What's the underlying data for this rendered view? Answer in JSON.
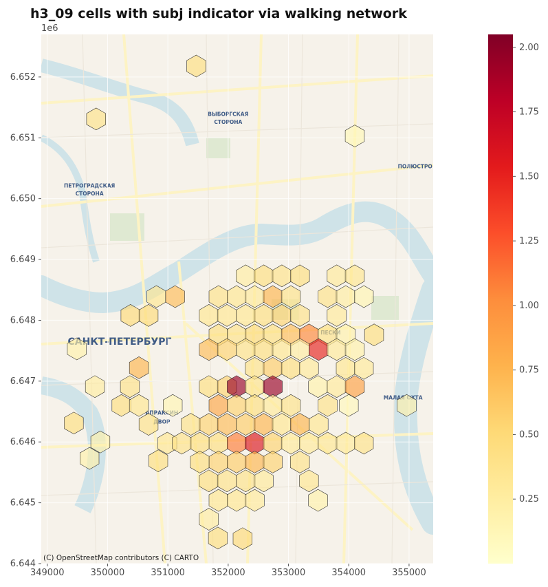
{
  "chart_data": {
    "type": "map",
    "title": "h3_09 cells with subj indicator via walking network",
    "xlim": [
      348900,
      355400
    ],
    "ylim": [
      6644000,
      6652700
    ],
    "y_offset_label": "1e6",
    "x_ticks": [
      349000,
      350000,
      351000,
      352000,
      353000,
      354000,
      355000
    ],
    "x_tick_labels": [
      "349000",
      "350000",
      "351000",
      "352000",
      "353000",
      "354000",
      "355000"
    ],
    "y_ticks": [
      6644000,
      6645000,
      6646000,
      6647000,
      6648000,
      6649000,
      6650000,
      6651000,
      6652000
    ],
    "y_tick_labels": [
      "6.644",
      "6.645",
      "6.646",
      "6.647",
      "6.648",
      "6.649",
      "6.650",
      "6.651",
      "6.652"
    ],
    "colorbar": {
      "colormap": "YlOrRd",
      "min": 0.0,
      "max": 2.05,
      "ticks": [
        0.25,
        0.5,
        0.75,
        1.0,
        1.25,
        1.5,
        1.75,
        2.0
      ],
      "tick_labels": [
        "0.25",
        "0.50",
        "0.75",
        "1.00",
        "1.25",
        "1.50",
        "1.75",
        "2.00"
      ]
    },
    "attribution": "(C) OpenStreetMap contributors (C) CARTO",
    "map_labels": [
      {
        "text": "ВЫБОРГСКАЯ",
        "x": 352000,
        "y": 6651360
      },
      {
        "text": "СТОРОНА",
        "x": 352000,
        "y": 6651230
      },
      {
        "text": "ПЕТРОГРАДСКАЯ",
        "x": 349700,
        "y": 6650180
      },
      {
        "text": "СТОРОНА",
        "x": 349700,
        "y": 6650050
      },
      {
        "text": "САНКТ-ПЕТЕРБУРГ",
        "x": 350200,
        "y": 6647600
      },
      {
        "text": "ПЕСКИ",
        "x": 353700,
        "y": 6647770
      },
      {
        "text": "ПОЛЮСТРО",
        "x": 355100,
        "y": 6650500
      },
      {
        "text": "МАЛАЯ ОХТА",
        "x": 354900,
        "y": 6646700
      },
      {
        "text": "АПРАКСИН",
        "x": 350900,
        "y": 6646450
      },
      {
        "text": "ДВОР",
        "x": 350900,
        "y": 6646300
      }
    ],
    "cells": [
      {
        "x": 351470,
        "y": 6652180,
        "v": 0.45
      },
      {
        "x": 349810,
        "y": 6651310,
        "v": 0.4
      },
      {
        "x": 354100,
        "y": 6651030,
        "v": 0.12
      },
      {
        "x": 352290,
        "y": 6648730,
        "v": 0.25
      },
      {
        "x": 352590,
        "y": 6648730,
        "v": 0.45
      },
      {
        "x": 352890,
        "y": 6648730,
        "v": 0.4
      },
      {
        "x": 353190,
        "y": 6648730,
        "v": 0.45
      },
      {
        "x": 353800,
        "y": 6648730,
        "v": 0.3
      },
      {
        "x": 354100,
        "y": 6648730,
        "v": 0.35
      },
      {
        "x": 350810,
        "y": 6648390,
        "v": 0.35
      },
      {
        "x": 351120,
        "y": 6648390,
        "v": 0.7
      },
      {
        "x": 351840,
        "y": 6648390,
        "v": 0.4
      },
      {
        "x": 352140,
        "y": 6648390,
        "v": 0.35
      },
      {
        "x": 352440,
        "y": 6648390,
        "v": 0.3
      },
      {
        "x": 352740,
        "y": 6648390,
        "v": 0.75
      },
      {
        "x": 353040,
        "y": 6648390,
        "v": 0.4
      },
      {
        "x": 353650,
        "y": 6648390,
        "v": 0.4
      },
      {
        "x": 353950,
        "y": 6648390,
        "v": 0.25
      },
      {
        "x": 354250,
        "y": 6648390,
        "v": 0.15
      },
      {
        "x": 350380,
        "y": 6648080,
        "v": 0.5
      },
      {
        "x": 350680,
        "y": 6648080,
        "v": 0.5
      },
      {
        "x": 351680,
        "y": 6648080,
        "v": 0.35
      },
      {
        "x": 351980,
        "y": 6648080,
        "v": 0.35
      },
      {
        "x": 352290,
        "y": 6648080,
        "v": 0.35
      },
      {
        "x": 352590,
        "y": 6648080,
        "v": 0.45
      },
      {
        "x": 352890,
        "y": 6648080,
        "v": 0.55
      },
      {
        "x": 353190,
        "y": 6648080,
        "v": 0.4
      },
      {
        "x": 353800,
        "y": 6648080,
        "v": 0.3
      },
      {
        "x": 351840,
        "y": 6647760,
        "v": 0.45
      },
      {
        "x": 352140,
        "y": 6647760,
        "v": 0.4
      },
      {
        "x": 352440,
        "y": 6647760,
        "v": 0.5
      },
      {
        "x": 352740,
        "y": 6647760,
        "v": 0.45
      },
      {
        "x": 353040,
        "y": 6647760,
        "v": 0.7
      },
      {
        "x": 353340,
        "y": 6647760,
        "v": 1.05
      },
      {
        "x": 353650,
        "y": 6647760,
        "v": 0.4
      },
      {
        "x": 353950,
        "y": 6647760,
        "v": 0.2
      },
      {
        "x": 354420,
        "y": 6647760,
        "v": 0.45
      },
      {
        "x": 349490,
        "y": 6647530,
        "v": 0.2
      },
      {
        "x": 351680,
        "y": 6647520,
        "v": 0.7
      },
      {
        "x": 351980,
        "y": 6647520,
        "v": 0.55
      },
      {
        "x": 352290,
        "y": 6647520,
        "v": 0.4
      },
      {
        "x": 352590,
        "y": 6647520,
        "v": 0.45
      },
      {
        "x": 352890,
        "y": 6647520,
        "v": 0.35
      },
      {
        "x": 353190,
        "y": 6647520,
        "v": 0.25
      },
      {
        "x": 353500,
        "y": 6647520,
        "v": 1.5
      },
      {
        "x": 353800,
        "y": 6647520,
        "v": 0.3
      },
      {
        "x": 354100,
        "y": 6647520,
        "v": 0.2
      },
      {
        "x": 350520,
        "y": 6647220,
        "v": 0.75
      },
      {
        "x": 352440,
        "y": 6647210,
        "v": 0.4
      },
      {
        "x": 352740,
        "y": 6647210,
        "v": 0.6
      },
      {
        "x": 353040,
        "y": 6647210,
        "v": 0.45
      },
      {
        "x": 353340,
        "y": 6647210,
        "v": 0.3
      },
      {
        "x": 353950,
        "y": 6647210,
        "v": 0.35
      },
      {
        "x": 354250,
        "y": 6647210,
        "v": 0.3
      },
      {
        "x": 349790,
        "y": 6646910,
        "v": 0.25
      },
      {
        "x": 350370,
        "y": 6646910,
        "v": 0.4
      },
      {
        "x": 351680,
        "y": 6646910,
        "v": 0.45
      },
      {
        "x": 351980,
        "y": 6646910,
        "v": 0.55
      },
      {
        "x": 352140,
        "y": 6646910,
        "v": 1.95
      },
      {
        "x": 352440,
        "y": 6646910,
        "v": 0.4
      },
      {
        "x": 352740,
        "y": 6646910,
        "v": 1.95
      },
      {
        "x": 353490,
        "y": 6646910,
        "v": 0.2
      },
      {
        "x": 353800,
        "y": 6646910,
        "v": 0.3
      },
      {
        "x": 354100,
        "y": 6646910,
        "v": 0.9
      },
      {
        "x": 350230,
        "y": 6646600,
        "v": 0.45
      },
      {
        "x": 350520,
        "y": 6646600,
        "v": 0.35
      },
      {
        "x": 351080,
        "y": 6646600,
        "v": 0.15
      },
      {
        "x": 351840,
        "y": 6646600,
        "v": 0.85
      },
      {
        "x": 352140,
        "y": 6646600,
        "v": 0.55
      },
      {
        "x": 352440,
        "y": 6646600,
        "v": 0.45
      },
      {
        "x": 352740,
        "y": 6646600,
        "v": 0.3
      },
      {
        "x": 353040,
        "y": 6646600,
        "v": 0.4
      },
      {
        "x": 353650,
        "y": 6646600,
        "v": 0.4
      },
      {
        "x": 354000,
        "y": 6646600,
        "v": 0.1
      },
      {
        "x": 354960,
        "y": 6646600,
        "v": 0.2
      },
      {
        "x": 349440,
        "y": 6646310,
        "v": 0.45
      },
      {
        "x": 350680,
        "y": 6646290,
        "v": 0.4
      },
      {
        "x": 351380,
        "y": 6646290,
        "v": 0.4
      },
      {
        "x": 351680,
        "y": 6646290,
        "v": 0.55
      },
      {
        "x": 351980,
        "y": 6646290,
        "v": 0.7
      },
      {
        "x": 352290,
        "y": 6646290,
        "v": 0.6
      },
      {
        "x": 352590,
        "y": 6646290,
        "v": 0.75
      },
      {
        "x": 352890,
        "y": 6646290,
        "v": 0.35
      },
      {
        "x": 353190,
        "y": 6646290,
        "v": 0.75
      },
      {
        "x": 353500,
        "y": 6646290,
        "v": 0.35
      },
      {
        "x": 349880,
        "y": 6646000,
        "v": 0.2
      },
      {
        "x": 350990,
        "y": 6645980,
        "v": 0.35
      },
      {
        "x": 351230,
        "y": 6645980,
        "v": 0.4
      },
      {
        "x": 351530,
        "y": 6645980,
        "v": 0.45
      },
      {
        "x": 351840,
        "y": 6645980,
        "v": 0.45
      },
      {
        "x": 352140,
        "y": 6645980,
        "v": 1.1
      },
      {
        "x": 352440,
        "y": 6645980,
        "v": 1.6
      },
      {
        "x": 352740,
        "y": 6645980,
        "v": 0.55
      },
      {
        "x": 353040,
        "y": 6645980,
        "v": 0.3
      },
      {
        "x": 353340,
        "y": 6645980,
        "v": 0.3
      },
      {
        "x": 353650,
        "y": 6645980,
        "v": 0.35
      },
      {
        "x": 353950,
        "y": 6645980,
        "v": 0.3
      },
      {
        "x": 354250,
        "y": 6645980,
        "v": 0.4
      },
      {
        "x": 349700,
        "y": 6645730,
        "v": 0.2
      },
      {
        "x": 350840,
        "y": 6645690,
        "v": 0.45
      },
      {
        "x": 351530,
        "y": 6645670,
        "v": 0.45
      },
      {
        "x": 351840,
        "y": 6645670,
        "v": 0.55
      },
      {
        "x": 352140,
        "y": 6645670,
        "v": 0.6
      },
      {
        "x": 352440,
        "y": 6645670,
        "v": 0.75
      },
      {
        "x": 352740,
        "y": 6645670,
        "v": 0.55
      },
      {
        "x": 353190,
        "y": 6645670,
        "v": 0.4
      },
      {
        "x": 351680,
        "y": 6645360,
        "v": 0.45
      },
      {
        "x": 351980,
        "y": 6645360,
        "v": 0.4
      },
      {
        "x": 352290,
        "y": 6645360,
        "v": 0.4
      },
      {
        "x": 352590,
        "y": 6645360,
        "v": 0.3
      },
      {
        "x": 353340,
        "y": 6645360,
        "v": 0.35
      },
      {
        "x": 351840,
        "y": 6645040,
        "v": 0.35
      },
      {
        "x": 352140,
        "y": 6645040,
        "v": 0.35
      },
      {
        "x": 352440,
        "y": 6645040,
        "v": 0.3
      },
      {
        "x": 353490,
        "y": 6645040,
        "v": 0.2
      },
      {
        "x": 351680,
        "y": 6644730,
        "v": 0.25
      },
      {
        "x": 351830,
        "y": 6644420,
        "v": 0.45
      },
      {
        "x": 352240,
        "y": 6644410,
        "v": 0.5
      }
    ]
  }
}
